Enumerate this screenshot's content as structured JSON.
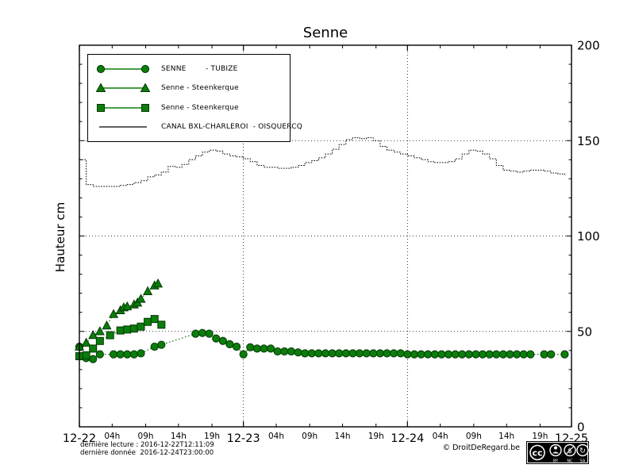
{
  "title": "Senne",
  "ylabel": "Hauteur cm",
  "footer": {
    "last_reading": "dernière lecture : 2016-12-22T12:11:09",
    "last_data": "dernière donnée  2016-12-24T23:00:00",
    "copyright": "© DroitDeRegard.be",
    "license": {
      "cc": "cc",
      "by": "BY",
      "nc": "NC",
      "sa": "SA"
    }
  },
  "chart_data": {
    "type": "line",
    "title": "Senne",
    "xlabel": "",
    "ylabel": "Hauteur cm",
    "ylim": [
      0,
      200
    ],
    "xlim_hours": [
      0,
      72
    ],
    "grid": "dotted",
    "legend_position": "upper-left",
    "yticks": [
      0,
      50,
      100,
      150,
      200
    ],
    "ytick_labels": [
      "0",
      "50",
      "100",
      "150",
      "200"
    ],
    "ytick_side": "right",
    "y_minor_step": 10,
    "x_major_ticks": [
      {
        "hour": 0,
        "label": "12-22"
      },
      {
        "hour": 24,
        "label": "12-23"
      },
      {
        "hour": 48,
        "label": "12-24"
      },
      {
        "hour": 72,
        "label": "12-25"
      }
    ],
    "x_minor_labels": [
      "04h",
      "09h",
      "14h",
      "19h"
    ],
    "x_minor_offsets": [
      4.8,
      9.7,
      14.5,
      19.4
    ],
    "colors": {
      "green": "#0b7d0b",
      "marker_edge": "#033803",
      "line_black": "#000000"
    },
    "series": [
      {
        "name": "SENNE        - TUBIZE",
        "station": "SENNE - TUBIZE",
        "marker": "circle",
        "color": "#0b7d0b",
        "linestyle": "dotted",
        "x": [
          0,
          1,
          2,
          3,
          5,
          6,
          7,
          8,
          9,
          11,
          12,
          17,
          18,
          19,
          20,
          21,
          22,
          23,
          24,
          25,
          26,
          27,
          28,
          29,
          30,
          31,
          32,
          33,
          34,
          35,
          36,
          37,
          38,
          39,
          40,
          41,
          42,
          43,
          44,
          45,
          46,
          47,
          48,
          49,
          50,
          51,
          52,
          53,
          54,
          55,
          56,
          57,
          58,
          59,
          60,
          61,
          62,
          63,
          64,
          65,
          66,
          68,
          69,
          71
        ],
        "values": [
          42,
          36,
          35.5,
          38,
          38,
          38,
          38,
          38,
          38.5,
          42,
          43,
          48.8,
          49.2,
          48.8,
          46.3,
          45,
          43.3,
          42,
          38,
          41.7,
          41,
          41,
          41,
          39.5,
          39.5,
          39.5,
          39,
          38.5,
          38.5,
          38.5,
          38.5,
          38.5,
          38.5,
          38.5,
          38.5,
          38.5,
          38.5,
          38.5,
          38.5,
          38.5,
          38.5,
          38.5,
          38,
          38,
          38,
          38,
          38,
          38,
          38,
          38,
          38,
          38,
          38,
          38,
          38,
          38,
          38,
          38,
          38,
          38,
          38,
          38,
          38,
          38
        ]
      },
      {
        "name": "Senne - Steenkerque",
        "station": "Senne - Steenkerque",
        "marker": "triangle",
        "color": "#0b7d0b",
        "linestyle": "dotted",
        "x": [
          0,
          1,
          2,
          3,
          4,
          5,
          6,
          6.5,
          7,
          8,
          8.5,
          9,
          10,
          11,
          11.5
        ],
        "values": [
          42,
          44,
          48,
          50,
          53,
          59,
          61,
          62.5,
          63,
          64,
          65,
          67,
          71,
          74,
          75
        ]
      },
      {
        "name": "Senne - Steenkerque",
        "station": "Senne - Steenkerque",
        "marker": "square",
        "color": "#0b7d0b",
        "linestyle": "dotted",
        "x": [
          0,
          1,
          2,
          3,
          4.5,
          6,
          7,
          8,
          9,
          10,
          11,
          12
        ],
        "values": [
          37,
          37.5,
          41,
          45,
          48,
          50.5,
          51,
          51.5,
          52.5,
          55,
          56.5,
          53.5
        ]
      },
      {
        "name": "CANAL BXL-CHARLEROI  - OISQUERCQ",
        "station": "CANAL BXL-CHARLEROI - OISQUERCQ",
        "marker": "none",
        "color": "#000000",
        "linestyle": "dotted",
        "step": true,
        "x_start": 0,
        "x_step": 1,
        "values": [
          140,
          127,
          126,
          126,
          126,
          126,
          126.5,
          127,
          128,
          129,
          131,
          132,
          133.5,
          136.5,
          136,
          137.5,
          140,
          142,
          144,
          145,
          144.5,
          143,
          142,
          141.5,
          140.5,
          139,
          137,
          136,
          136,
          135.5,
          135.5,
          136,
          137,
          138.5,
          139.5,
          141,
          143,
          145.5,
          148,
          150.5,
          151.5,
          151,
          151.5,
          150,
          147,
          145,
          144,
          143,
          142,
          141,
          140,
          139,
          138.5,
          138.5,
          139,
          140.5,
          143,
          145,
          144.5,
          143,
          140.5,
          137,
          134.5,
          134,
          133.5,
          134,
          134.5,
          134.5,
          134,
          133,
          132.5,
          132
        ]
      }
    ]
  }
}
